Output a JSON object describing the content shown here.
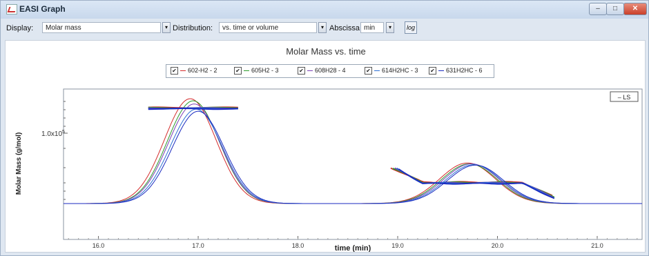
{
  "window": {
    "title": "EASI Graph",
    "min": "–",
    "max": "□",
    "close": "✕"
  },
  "toolbar": {
    "display_label": "Display:",
    "display_value": "Molar mass",
    "distribution_label": "Distribution:",
    "distribution_value": "vs. time or volume",
    "abscissa_label": "Abscissa:",
    "abscissa_value": "min",
    "log_label": "log",
    "dropdown_glyph": "▾"
  },
  "chart_data": {
    "type": "line",
    "title": "Molar Mass vs. time",
    "xlabel": "time (min)",
    "ylabel": "Molar Mass (g/mol)",
    "xlim": [
      15.65,
      21.45
    ],
    "x_ticks": [
      "16.0",
      "17.0",
      "18.0",
      "19.0",
      "20.0",
      "21.0"
    ],
    "x_tick_values": [
      16.0,
      17.0,
      18.0,
      19.0,
      20.0,
      21.0
    ],
    "y_tick_label": "1.0x10",
    "y_tick_exp": "5",
    "legend": [
      {
        "checked": "✔",
        "name": "602-H2 - 2",
        "color": "#d42a2a"
      },
      {
        "checked": "✔",
        "name": "605H2 - 3",
        "color": "#2a9a2a"
      },
      {
        "checked": "✔",
        "name": "608H28 - 4",
        "color": "#7a3fb5"
      },
      {
        "checked": "✔",
        "name": "614H2HC - 3",
        "color": "#2a6fd4"
      },
      {
        "checked": "✔",
        "name": "631H2HC - 6",
        "color": "#1a2ac0"
      }
    ],
    "ls_label": "– LS",
    "series": [
      {
        "name": "602-H2 - 2",
        "color": "#d42a2a",
        "peak1": [
          16.92,
          1.0
        ],
        "peak2": [
          19.7,
          0.92
        ]
      },
      {
        "name": "605H2 - 3",
        "color": "#2a9a2a",
        "peak1": [
          16.95,
          0.98
        ],
        "peak2": [
          19.72,
          0.9
        ]
      },
      {
        "name": "608H28 - 4",
        "color": "#7a3fb5",
        "peak1": [
          16.96,
          0.95
        ],
        "peak2": [
          19.74,
          0.9
        ]
      },
      {
        "name": "614H2HC - 3",
        "color": "#2a6fd4",
        "peak1": [
          16.98,
          0.9
        ],
        "peak2": [
          19.76,
          0.88
        ]
      },
      {
        "name": "631H2HC - 6",
        "color": "#1a2ac0",
        "peak1": [
          17.0,
          0.88
        ],
        "peak2": [
          19.78,
          0.87
        ]
      }
    ]
  }
}
